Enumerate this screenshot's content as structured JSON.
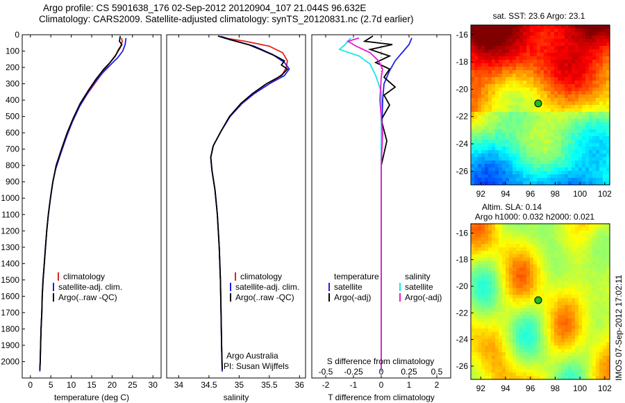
{
  "title_line1": "Argo profile: CS 5901638_176 02-Sep-2012 20120904_107 21.044S 96.632E",
  "title_line2": "Climatology: CARS2009. Satellite-adjusted climatology: synTS_20120831.nc (2.7d earlier)",
  "side_text": "IMOS 07-Sep-2012 17:02:11",
  "colors": {
    "red": "#e0231c",
    "blue": "#1e1ee6",
    "black": "#000000",
    "cyan": "#19e6e6",
    "magenta": "#e619d2"
  },
  "chart_data": [
    {
      "type": "line",
      "id": "temperature",
      "xlabel": "temperature (deg C)",
      "xlim": [
        -2,
        32
      ],
      "xticks": [
        "0",
        "5",
        "10",
        "15",
        "20",
        "25",
        "30"
      ],
      "ylim": [
        2100,
        0
      ],
      "yticks": [
        "0",
        "100",
        "200",
        "300",
        "400",
        "500",
        "600",
        "700",
        "800",
        "900",
        "1000",
        "1100",
        "1200",
        "1300",
        "1400",
        "1500",
        "1600",
        "1700",
        "1800",
        "1900",
        "2000"
      ],
      "legend": [
        "climatology",
        "satellite-adj. clim.",
        "Argo(..raw -QC)"
      ],
      "series": [
        {
          "name": "climatology",
          "color": "red",
          "points": [
            [
              22.3,
              20
            ],
            [
              22.5,
              40
            ],
            [
              22.0,
              80
            ],
            [
              21.0,
              120
            ],
            [
              19.5,
              170
            ],
            [
              18.0,
              220
            ],
            [
              16.0,
              290
            ],
            [
              14.0,
              360
            ],
            [
              12.0,
              440
            ],
            [
              10.3,
              530
            ],
            [
              8.9,
              620
            ],
            [
              7.5,
              720
            ],
            [
              6.2,
              820
            ],
            [
              5.5,
              900
            ],
            [
              4.9,
              1000
            ],
            [
              4.4,
              1100
            ],
            [
              4.0,
              1200
            ],
            [
              3.7,
              1300
            ],
            [
              3.4,
              1400
            ],
            [
              3.1,
              1500
            ],
            [
              2.9,
              1600
            ],
            [
              2.8,
              1700
            ],
            [
              2.6,
              1800
            ],
            [
              2.5,
              1900
            ],
            [
              2.4,
              2000
            ],
            [
              2.3,
              2060
            ]
          ]
        },
        {
          "name": "satellite-adj. clim.",
          "color": "blue",
          "points": [
            [
              23.4,
              20
            ],
            [
              23.2,
              60
            ],
            [
              22.6,
              100
            ],
            [
              21.4,
              140
            ],
            [
              19.8,
              180
            ],
            [
              17.8,
              230
            ],
            [
              15.8,
              290
            ],
            [
              13.9,
              360
            ],
            [
              12.0,
              440
            ],
            [
              10.3,
              530
            ],
            [
              8.9,
              620
            ],
            [
              7.5,
              720
            ],
            [
              6.2,
              820
            ],
            [
              5.5,
              900
            ],
            [
              4.9,
              1000
            ],
            [
              4.4,
              1100
            ],
            [
              4.0,
              1200
            ],
            [
              3.7,
              1300
            ],
            [
              3.4,
              1400
            ],
            [
              3.1,
              1500
            ],
            [
              2.9,
              1600
            ],
            [
              2.8,
              1700
            ],
            [
              2.6,
              1800
            ],
            [
              2.5,
              1900
            ],
            [
              2.4,
              2000
            ],
            [
              2.3,
              2060
            ]
          ]
        },
        {
          "name": "Argo(..raw -QC)",
          "color": "black",
          "points": [
            [
              22.0,
              8
            ],
            [
              21.8,
              40
            ],
            [
              22.4,
              60
            ],
            [
              21.6,
              90
            ],
            [
              20.8,
              130
            ],
            [
              19.5,
              170
            ],
            [
              18.0,
              210
            ],
            [
              16.1,
              270
            ],
            [
              14.2,
              340
            ],
            [
              12.2,
              420
            ],
            [
              10.5,
              510
            ],
            [
              9.0,
              600
            ],
            [
              7.6,
              700
            ],
            [
              6.3,
              800
            ],
            [
              5.5,
              900
            ],
            [
              4.9,
              1000
            ],
            [
              4.4,
              1100
            ],
            [
              4.0,
              1200
            ],
            [
              3.7,
              1300
            ],
            [
              3.4,
              1400
            ],
            [
              3.1,
              1500
            ],
            [
              2.9,
              1600
            ],
            [
              2.8,
              1700
            ],
            [
              2.6,
              1800
            ],
            [
              2.5,
              1900
            ],
            [
              2.4,
              2000
            ],
            [
              2.3,
              2050
            ]
          ]
        }
      ]
    },
    {
      "type": "line",
      "id": "salinity",
      "xlabel": "salinity",
      "xlim": [
        33.8,
        36.1
      ],
      "xticks": [
        "34",
        "34.5",
        "35",
        "35.5",
        "36"
      ],
      "ylim": [
        2100,
        0
      ],
      "legend": [
        "climatology",
        "satellite-adj. clim.",
        "Argo(..raw -QC)"
      ],
      "annotation": [
        "Argo Australia",
        "PI: Susan Wijffels"
      ],
      "series": [
        {
          "name": "climatology",
          "color": "red",
          "points": [
            [
              34.75,
              20
            ],
            [
              35.1,
              40
            ],
            [
              35.5,
              70
            ],
            [
              35.72,
              110
            ],
            [
              35.8,
              160
            ],
            [
              35.78,
              200
            ],
            [
              35.72,
              240
            ],
            [
              35.5,
              300
            ],
            [
              35.25,
              360
            ],
            [
              35.05,
              420
            ],
            [
              34.85,
              500
            ],
            [
              34.7,
              590
            ],
            [
              34.57,
              680
            ],
            [
              34.53,
              750
            ],
            [
              34.55,
              830
            ],
            [
              34.6,
              950
            ],
            [
              34.64,
              1100
            ],
            [
              34.67,
              1300
            ],
            [
              34.69,
              1500
            ],
            [
              34.7,
              1700
            ],
            [
              34.71,
              1900
            ],
            [
              34.72,
              2060
            ]
          ]
        },
        {
          "name": "satellite-adj. clim.",
          "color": "blue",
          "points": [
            [
              34.7,
              10
            ],
            [
              34.95,
              40
            ],
            [
              35.25,
              70
            ],
            [
              35.55,
              120
            ],
            [
              35.75,
              170
            ],
            [
              35.83,
              210
            ],
            [
              35.75,
              250
            ],
            [
              35.5,
              300
            ],
            [
              35.25,
              360
            ],
            [
              35.05,
              420
            ],
            [
              34.85,
              500
            ],
            [
              34.7,
              590
            ],
            [
              34.57,
              680
            ],
            [
              34.53,
              750
            ],
            [
              34.55,
              830
            ],
            [
              34.6,
              950
            ],
            [
              34.64,
              1100
            ],
            [
              34.67,
              1300
            ],
            [
              34.69,
              1500
            ],
            [
              34.7,
              1700
            ],
            [
              34.71,
              1900
            ],
            [
              34.72,
              2060
            ]
          ]
        },
        {
          "name": "Argo(..raw -QC)",
          "color": "black",
          "points": [
            [
              34.65,
              8
            ],
            [
              34.85,
              30
            ],
            [
              35.15,
              60
            ],
            [
              35.35,
              90
            ],
            [
              35.6,
              130
            ],
            [
              35.75,
              160
            ],
            [
              35.7,
              185
            ],
            [
              35.8,
              210
            ],
            [
              35.7,
              250
            ],
            [
              35.45,
              300
            ],
            [
              35.22,
              360
            ],
            [
              35.03,
              420
            ],
            [
              34.84,
              500
            ],
            [
              34.7,
              590
            ],
            [
              34.57,
              680
            ],
            [
              34.53,
              750
            ],
            [
              34.55,
              830
            ],
            [
              34.6,
              950
            ],
            [
              34.64,
              1100
            ],
            [
              34.67,
              1300
            ],
            [
              34.69,
              1500
            ],
            [
              34.7,
              1700
            ],
            [
              34.71,
              1900
            ],
            [
              34.72,
              2050
            ]
          ]
        }
      ]
    },
    {
      "type": "line",
      "id": "difference",
      "xlabel": "T difference from climatology",
      "xlabel2": "S difference from climatology",
      "xlim": [
        -2.5,
        2.5
      ],
      "xticks": [
        "-2",
        "-1",
        "0",
        "1",
        "2"
      ],
      "xticks_s": [
        "-0.5",
        "-0.25",
        "0",
        "0.25",
        "0.5"
      ],
      "ylim": [
        2100,
        0
      ],
      "legend_titles": [
        "temperature",
        "salinity"
      ],
      "legend": [
        "satellite",
        "Argo(-adj)",
        "satellite",
        "Argo(-adj)"
      ],
      "series": [
        {
          "name": "temperature satellite",
          "color": "blue",
          "points": [
            [
              1.1,
              20
            ],
            [
              1.0,
              60
            ],
            [
              0.8,
              100
            ],
            [
              0.5,
              160
            ],
            [
              0.3,
              220
            ],
            [
              0.1,
              300
            ],
            [
              0.05,
              400
            ],
            [
              0.02,
              600
            ],
            [
              0,
              800
            ],
            [
              0,
              1000
            ],
            [
              0,
              2060
            ]
          ]
        },
        {
          "name": "temperature Argo(-adj)",
          "color": "black",
          "points": [
            [
              -0.3,
              8
            ],
            [
              -0.6,
              40
            ],
            [
              0.4,
              60
            ],
            [
              -0.4,
              90
            ],
            [
              0.3,
              130
            ],
            [
              -0.2,
              170
            ],
            [
              0.3,
              210
            ],
            [
              0.1,
              260
            ],
            [
              0.5,
              320
            ],
            [
              0.1,
              370
            ],
            [
              0.3,
              430
            ],
            [
              0,
              520
            ],
            [
              0.2,
              650
            ],
            [
              0,
              800
            ],
            [
              0,
              1000
            ],
            [
              0,
              2050
            ]
          ]
        },
        {
          "name": "salinity satellite",
          "color": "cyan",
          "points": [
            [
              -1.1,
              20
            ],
            [
              -1.3,
              60
            ],
            [
              -1.5,
              90
            ],
            [
              -0.8,
              130
            ],
            [
              -0.4,
              180
            ],
            [
              -0.2,
              250
            ],
            [
              0,
              350
            ],
            [
              0,
              500
            ],
            [
              0,
              800
            ],
            [
              0,
              2060
            ]
          ]
        },
        {
          "name": "salinity Argo(-adj)",
          "color": "magenta",
          "points": [
            [
              -0.8,
              20
            ],
            [
              -1.2,
              40
            ],
            [
              -0.9,
              70
            ],
            [
              -0.4,
              110
            ],
            [
              -0.1,
              160
            ],
            [
              0.05,
              210
            ],
            [
              0,
              260
            ],
            [
              -0.05,
              400
            ],
            [
              0.05,
              600
            ],
            [
              0,
              800
            ],
            [
              0,
              1000
            ],
            [
              0,
              2050
            ]
          ]
        }
      ]
    },
    {
      "type": "heatmap",
      "id": "sst-map",
      "title": "sat. SST: 23.6  Argo: 23.1",
      "xticks": [
        "92",
        "94",
        "96",
        "98",
        "100",
        "102"
      ],
      "yticks": [
        "-16",
        "-18",
        "-20",
        "-22",
        "-24",
        "-26"
      ],
      "xlim": [
        91.2,
        102.4
      ],
      "ylim": [
        -27.0,
        -15.3
      ],
      "marker": {
        "lon": 96.632,
        "lat": -21.044
      }
    },
    {
      "type": "heatmap",
      "id": "sla-map",
      "title": "Altim. SLA: 0.14",
      "subtitle": "Argo h1000: 0.032  h2000: 0.021",
      "xticks": [
        "92",
        "94",
        "96",
        "98",
        "100",
        "102"
      ],
      "yticks": [
        "-16",
        "-18",
        "-20",
        "-22",
        "-24",
        "-26"
      ],
      "xlim": [
        91.2,
        102.4
      ],
      "ylim": [
        -27.0,
        -15.3
      ],
      "marker": {
        "lon": 96.632,
        "lat": -21.044
      }
    }
  ]
}
